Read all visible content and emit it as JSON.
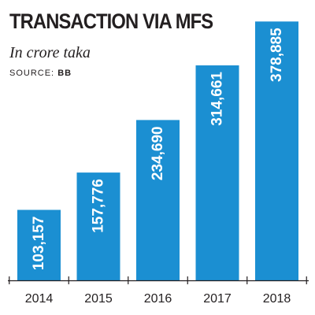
{
  "chart_data": {
    "type": "bar",
    "title": "TRANSACTION VIA MFS",
    "subtitle": "In crore taka",
    "source_label": "SOURCE:",
    "source_value": "BB",
    "xlabel": "",
    "ylabel": "",
    "categories": [
      "2014",
      "2015",
      "2016",
      "2017",
      "2018"
    ],
    "values": [
      103157,
      157776,
      234690,
      314661,
      378885
    ],
    "value_labels": [
      "103,157",
      "157,776",
      "234,690",
      "314,661",
      "378,885"
    ],
    "ylim": [
      0,
      385000
    ],
    "grid": false,
    "legend": "none",
    "bar_color": "#1b8fd2",
    "axis_color": "#231f20"
  }
}
